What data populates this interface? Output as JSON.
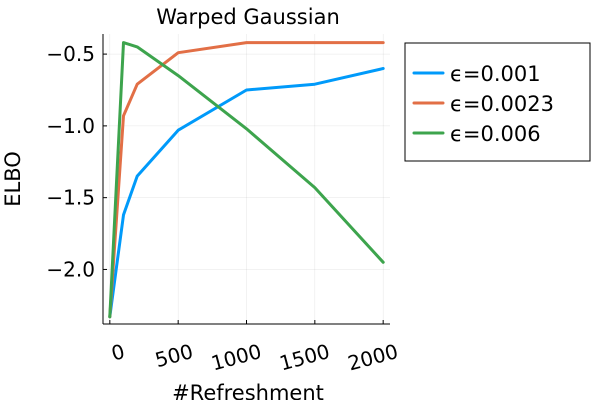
{
  "chart_data": {
    "type": "line",
    "title": "Warped Gaussian",
    "xlabel": "#Refreshment",
    "ylabel": "ELBO",
    "xlim": [
      -50,
      2050
    ],
    "ylim": [
      -2.38,
      -0.36
    ],
    "xticks": [
      0,
      500,
      1000,
      1500,
      2000
    ],
    "xtick_labels": [
      "0",
      "500",
      "1000",
      "1500",
      "2000"
    ],
    "yticks": [
      -2.0,
      -1.5,
      -1.0,
      -0.5
    ],
    "ytick_labels": [
      "−2.0",
      "−1.5",
      "−1.0",
      "−0.5"
    ],
    "grid": true,
    "legend_position": "outside-right",
    "series": [
      {
        "name": "ϵ=0.001",
        "color": "#009AFA",
        "x": [
          0,
          100,
          200,
          500,
          1000,
          1500,
          2000
        ],
        "y": [
          -2.33,
          -1.62,
          -1.35,
          -1.03,
          -0.75,
          -0.71,
          -0.6
        ]
      },
      {
        "name": "ϵ=0.0023",
        "color": "#E26F46",
        "x": [
          0,
          100,
          200,
          500,
          1000,
          1500,
          2000
        ],
        "y": [
          -2.33,
          -0.93,
          -0.71,
          -0.49,
          -0.42,
          -0.42,
          -0.42
        ]
      },
      {
        "name": "ϵ=0.006",
        "color": "#3DA44D",
        "x": [
          0,
          100,
          200,
          500,
          1000,
          1500,
          2000
        ],
        "y": [
          -2.33,
          -0.42,
          -0.45,
          -0.65,
          -1.02,
          -1.43,
          -1.95
        ]
      }
    ]
  }
}
